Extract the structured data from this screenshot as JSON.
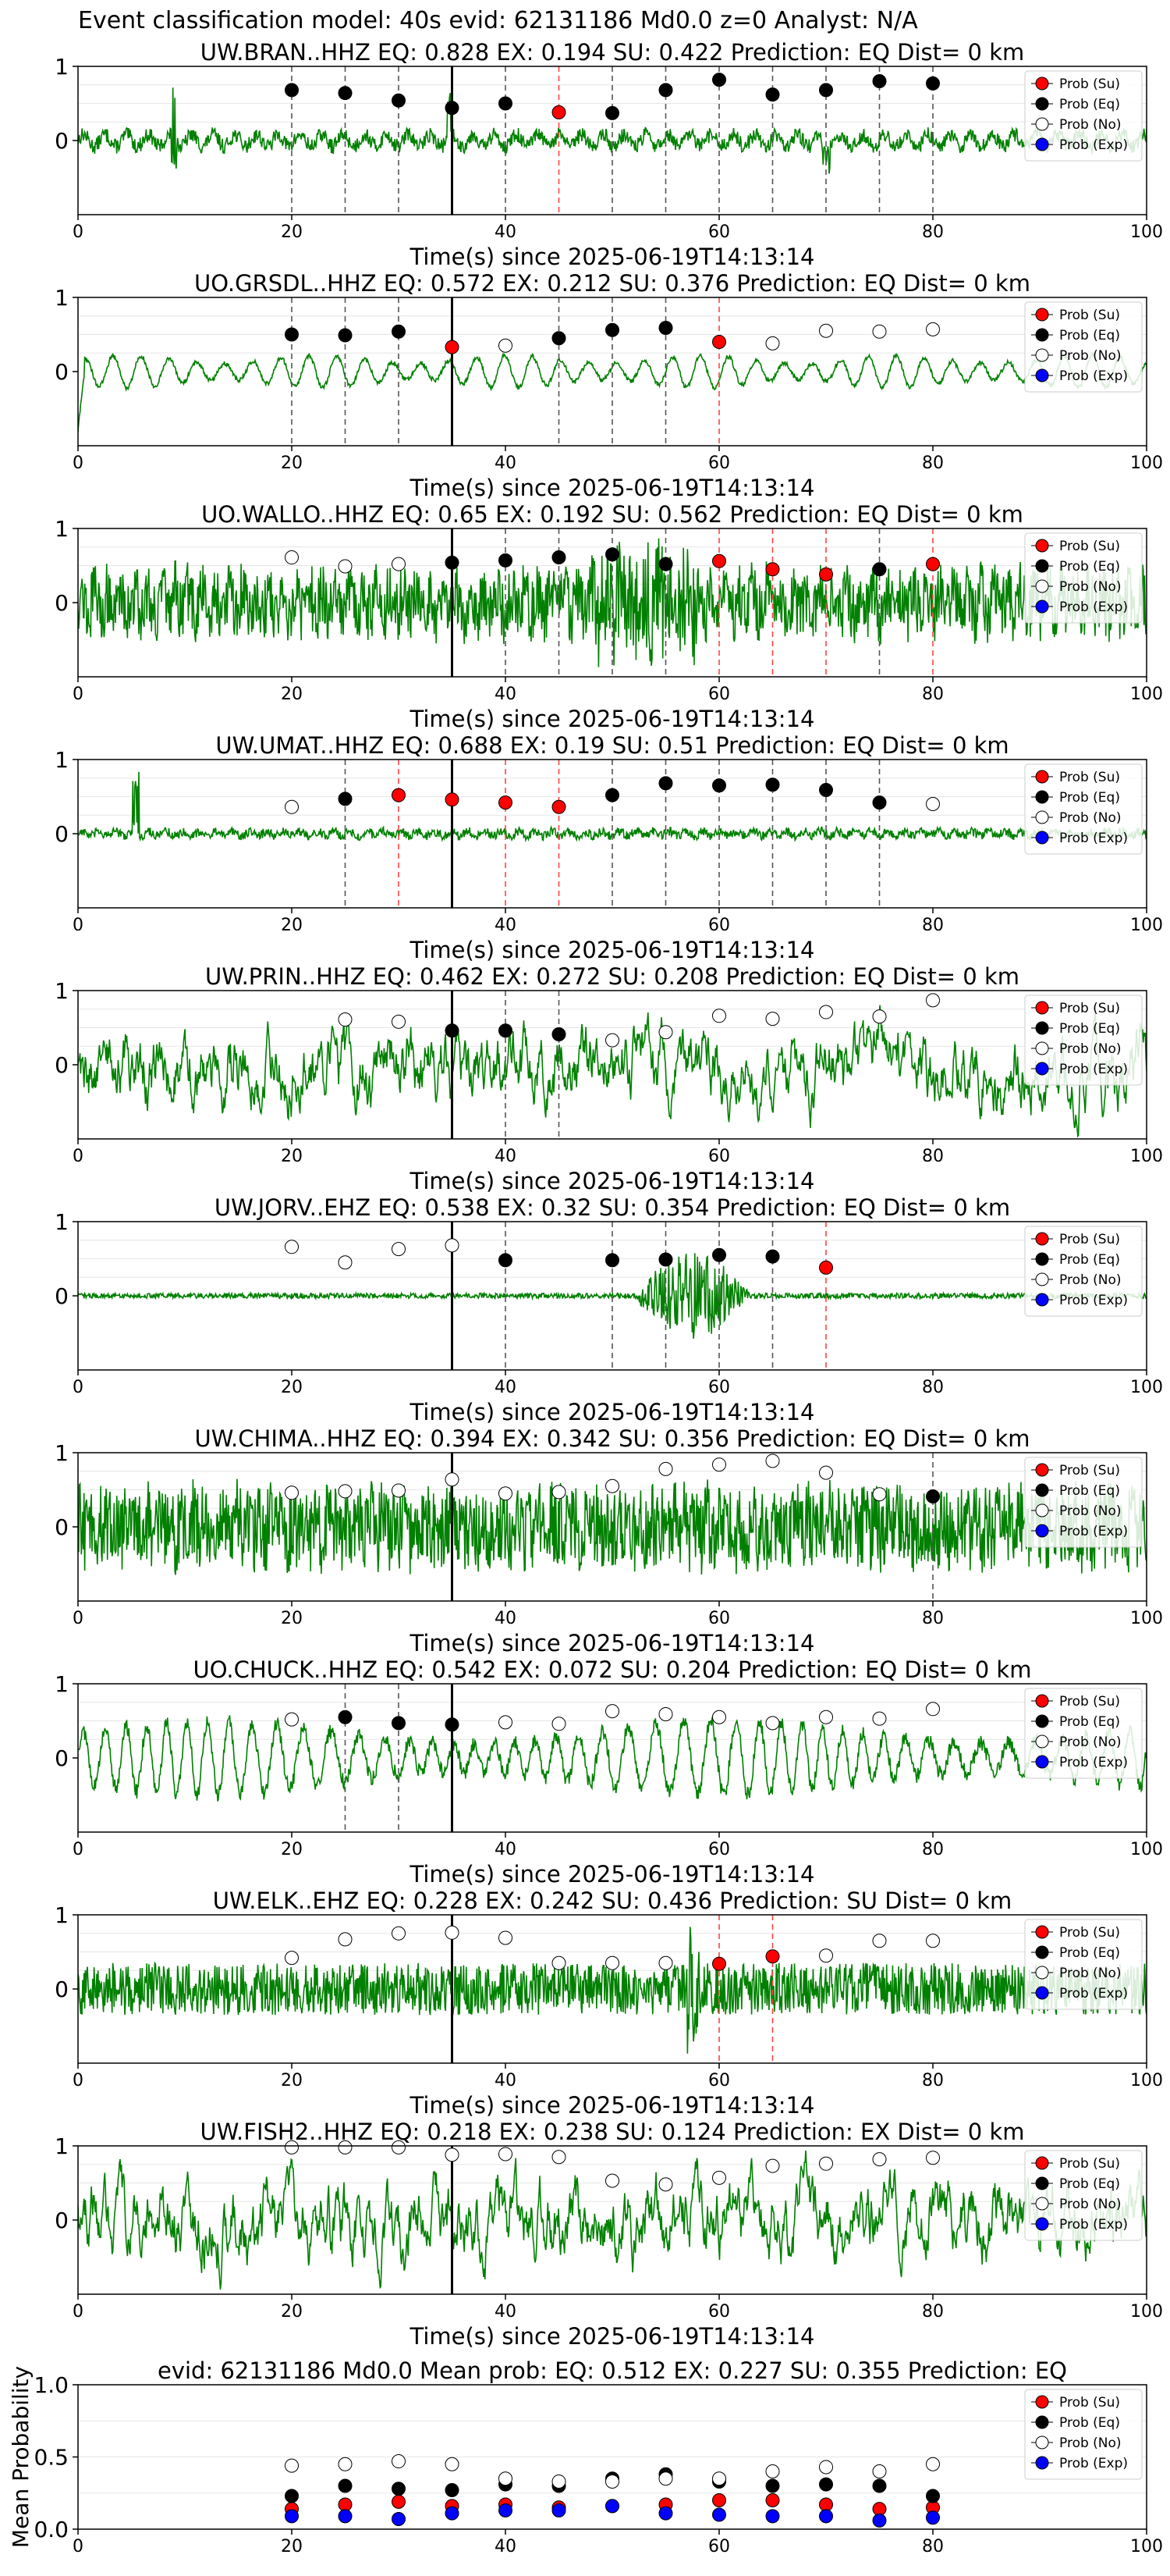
{
  "figure_title": "Event classification model: 40s evid: 62131186 Md0.0 z=0 Analyst: N/A",
  "legend_labels": [
    "Prob (Su)",
    "Prob (Eq)",
    "Prob (No)",
    "Prob (Exp)"
  ],
  "colors": {
    "su": "#ff0000",
    "eq": "#000000",
    "no": "#ffffff",
    "exp": "#0000ff",
    "trace": "#008000"
  },
  "chart_data": [
    {
      "type": "line",
      "title": "UW.BRAN..HHZ   EQ: 0.828  EX: 0.194  SU: 0.422   Prediction: EQ    Dist= 0 km",
      "xlabel": "Time(s) since 2025-06-19T14:13:14",
      "ylabel": "",
      "xlim": [
        0,
        100
      ],
      "ylim": [
        -1,
        1
      ],
      "yticks": [
        0,
        1
      ],
      "xticks": [
        0,
        20,
        40,
        60,
        80,
        100
      ],
      "trace_style": "low-amplitude noise with small spikes near 9s and 70s",
      "arrival_time": 35,
      "probability_points": [
        {
          "x": 20,
          "y": 0.68,
          "class": "Eq"
        },
        {
          "x": 25,
          "y": 0.64,
          "class": "Eq"
        },
        {
          "x": 30,
          "y": 0.54,
          "class": "Eq"
        },
        {
          "x": 35,
          "y": 0.44,
          "class": "Eq"
        },
        {
          "x": 40,
          "y": 0.5,
          "class": "Eq"
        },
        {
          "x": 45,
          "y": 0.38,
          "class": "Su"
        },
        {
          "x": 50,
          "y": 0.37,
          "class": "Eq"
        },
        {
          "x": 55,
          "y": 0.68,
          "class": "Eq"
        },
        {
          "x": 60,
          "y": 0.82,
          "class": "Eq"
        },
        {
          "x": 65,
          "y": 0.62,
          "class": "Eq"
        },
        {
          "x": 70,
          "y": 0.68,
          "class": "Eq"
        },
        {
          "x": 75,
          "y": 0.8,
          "class": "Eq"
        },
        {
          "x": 80,
          "y": 0.77,
          "class": "Eq"
        }
      ]
    },
    {
      "type": "line",
      "title": "UO.GRSDL..HHZ   EQ: 0.572  EX: 0.212  SU: 0.376   Prediction: EQ    Dist= 0 km",
      "xlabel": "Time(s) since 2025-06-19T14:13:14",
      "ylabel": "",
      "xlim": [
        0,
        100
      ],
      "ylim": [
        -1,
        1
      ],
      "yticks": [
        0,
        1
      ],
      "xticks": [
        0,
        20,
        40,
        60,
        80,
        100
      ],
      "trace_style": "smooth oscillation, decaying after initial drop",
      "arrival_time": 35,
      "probability_points": [
        {
          "x": 20,
          "y": 0.5,
          "class": "Eq"
        },
        {
          "x": 25,
          "y": 0.49,
          "class": "Eq"
        },
        {
          "x": 30,
          "y": 0.54,
          "class": "Eq"
        },
        {
          "x": 35,
          "y": 0.33,
          "class": "Su"
        },
        {
          "x": 40,
          "y": 0.35,
          "class": "No"
        },
        {
          "x": 45,
          "y": 0.45,
          "class": "Eq"
        },
        {
          "x": 50,
          "y": 0.56,
          "class": "Eq"
        },
        {
          "x": 55,
          "y": 0.59,
          "class": "Eq"
        },
        {
          "x": 60,
          "y": 0.4,
          "class": "Su"
        },
        {
          "x": 65,
          "y": 0.38,
          "class": "No"
        },
        {
          "x": 70,
          "y": 0.55,
          "class": "No"
        },
        {
          "x": 75,
          "y": 0.54,
          "class": "No"
        },
        {
          "x": 80,
          "y": 0.57,
          "class": "No"
        }
      ]
    },
    {
      "type": "line",
      "title": "UO.WALLO..HHZ   EQ: 0.65  EX: 0.192  SU: 0.562   Prediction: EQ    Dist= 0 km",
      "xlabel": "Time(s) since 2025-06-19T14:13:14",
      "ylabel": "",
      "xlim": [
        0,
        100
      ],
      "ylim": [
        -1,
        1
      ],
      "yticks": [
        0,
        1
      ],
      "xticks": [
        0,
        20,
        40,
        60,
        80,
        100
      ],
      "trace_style": "high-amplitude noise, burst around 50-55s",
      "arrival_time": 35,
      "probability_points": [
        {
          "x": 20,
          "y": 0.61,
          "class": "No"
        },
        {
          "x": 25,
          "y": 0.49,
          "class": "No"
        },
        {
          "x": 30,
          "y": 0.52,
          "class": "No"
        },
        {
          "x": 35,
          "y": 0.54,
          "class": "Eq"
        },
        {
          "x": 40,
          "y": 0.57,
          "class": "Eq"
        },
        {
          "x": 45,
          "y": 0.61,
          "class": "Eq"
        },
        {
          "x": 50,
          "y": 0.65,
          "class": "Eq"
        },
        {
          "x": 55,
          "y": 0.52,
          "class": "Eq"
        },
        {
          "x": 60,
          "y": 0.56,
          "class": "Su"
        },
        {
          "x": 65,
          "y": 0.45,
          "class": "Su"
        },
        {
          "x": 70,
          "y": 0.38,
          "class": "Su"
        },
        {
          "x": 75,
          "y": 0.45,
          "class": "Eq"
        },
        {
          "x": 80,
          "y": 0.52,
          "class": "Su"
        }
      ]
    },
    {
      "type": "line",
      "title": "UW.UMAT..HHZ   EQ: 0.688  EX: 0.19  SU: 0.51   Prediction: EQ    Dist= 0 km",
      "xlabel": "Time(s) since 2025-06-19T14:13:14",
      "ylabel": "",
      "xlim": [
        0,
        100
      ],
      "ylim": [
        -1,
        1
      ],
      "yticks": [
        0,
        1
      ],
      "xticks": [
        0,
        20,
        40,
        60,
        80,
        100
      ],
      "trace_style": "low-amplitude noise with large spike near 5s",
      "arrival_time": 35,
      "probability_points": [
        {
          "x": 20,
          "y": 0.36,
          "class": "No"
        },
        {
          "x": 25,
          "y": 0.47,
          "class": "Eq"
        },
        {
          "x": 30,
          "y": 0.52,
          "class": "Su"
        },
        {
          "x": 35,
          "y": 0.46,
          "class": "Su"
        },
        {
          "x": 40,
          "y": 0.42,
          "class": "Su"
        },
        {
          "x": 45,
          "y": 0.36,
          "class": "Su"
        },
        {
          "x": 50,
          "y": 0.52,
          "class": "Eq"
        },
        {
          "x": 55,
          "y": 0.68,
          "class": "Eq"
        },
        {
          "x": 60,
          "y": 0.65,
          "class": "Eq"
        },
        {
          "x": 65,
          "y": 0.66,
          "class": "Eq"
        },
        {
          "x": 70,
          "y": 0.59,
          "class": "Eq"
        },
        {
          "x": 75,
          "y": 0.42,
          "class": "Eq"
        },
        {
          "x": 80,
          "y": 0.4,
          "class": "No"
        }
      ]
    },
    {
      "type": "line",
      "title": "UW.PRIN..HHZ   EQ: 0.462  EX: 0.272  SU: 0.208   Prediction: EQ    Dist= 0 km",
      "xlabel": "Time(s) since 2025-06-19T14:13:14",
      "ylabel": "",
      "xlim": [
        0,
        100
      ],
      "ylim": [
        -1,
        1
      ],
      "yticks": [
        0,
        1
      ],
      "xticks": [
        0,
        20,
        40,
        60,
        80,
        100
      ],
      "trace_style": "large irregular oscillation throughout",
      "arrival_time": 35,
      "probability_points": [
        {
          "x": 25,
          "y": 0.61,
          "class": "No"
        },
        {
          "x": 30,
          "y": 0.58,
          "class": "No"
        },
        {
          "x": 35,
          "y": 0.46,
          "class": "Eq"
        },
        {
          "x": 40,
          "y": 0.46,
          "class": "Eq"
        },
        {
          "x": 45,
          "y": 0.41,
          "class": "Eq"
        },
        {
          "x": 50,
          "y": 0.33,
          "class": "No"
        },
        {
          "x": 55,
          "y": 0.44,
          "class": "No"
        },
        {
          "x": 60,
          "y": 0.66,
          "class": "No"
        },
        {
          "x": 65,
          "y": 0.62,
          "class": "No"
        },
        {
          "x": 70,
          "y": 0.71,
          "class": "No"
        },
        {
          "x": 75,
          "y": 0.65,
          "class": "No"
        },
        {
          "x": 80,
          "y": 0.87,
          "class": "No"
        }
      ]
    },
    {
      "type": "line",
      "title": "UW.JORV..EHZ   EQ: 0.538  EX: 0.32  SU: 0.354   Prediction: EQ    Dist= 0 km",
      "xlabel": "Time(s) since 2025-06-19T14:13:14",
      "ylabel": "",
      "xlim": [
        0,
        100
      ],
      "ylim": [
        -1,
        1
      ],
      "yticks": [
        0,
        1
      ],
      "xticks": [
        0,
        20,
        40,
        60,
        80,
        100
      ],
      "trace_style": "quiet trace with large burst between 53s and 62s",
      "arrival_time": 35,
      "probability_points": [
        {
          "x": 20,
          "y": 0.66,
          "class": "No"
        },
        {
          "x": 25,
          "y": 0.45,
          "class": "No"
        },
        {
          "x": 30,
          "y": 0.63,
          "class": "No"
        },
        {
          "x": 35,
          "y": 0.68,
          "class": "No"
        },
        {
          "x": 40,
          "y": 0.48,
          "class": "Eq"
        },
        {
          "x": 50,
          "y": 0.48,
          "class": "Eq"
        },
        {
          "x": 55,
          "y": 0.49,
          "class": "Eq"
        },
        {
          "x": 60,
          "y": 0.55,
          "class": "Eq"
        },
        {
          "x": 65,
          "y": 0.53,
          "class": "Eq"
        },
        {
          "x": 70,
          "y": 0.38,
          "class": "Su"
        }
      ]
    },
    {
      "type": "line",
      "title": "UW.CHIMA..HHZ   EQ: 0.394  EX: 0.342  SU: 0.356   Prediction: EQ    Dist= 0 km",
      "xlabel": "Time(s) since 2025-06-19T14:13:14",
      "ylabel": "",
      "xlim": [
        0,
        100
      ],
      "ylim": [
        -1,
        1
      ],
      "yticks": [
        0,
        1
      ],
      "xticks": [
        0,
        20,
        40,
        60,
        80,
        100
      ],
      "trace_style": "dense high-amplitude noise throughout",
      "arrival_time": 35,
      "probability_points": [
        {
          "x": 20,
          "y": 0.46,
          "class": "No"
        },
        {
          "x": 25,
          "y": 0.48,
          "class": "No"
        },
        {
          "x": 30,
          "y": 0.49,
          "class": "No"
        },
        {
          "x": 35,
          "y": 0.64,
          "class": "No"
        },
        {
          "x": 40,
          "y": 0.45,
          "class": "No"
        },
        {
          "x": 45,
          "y": 0.47,
          "class": "No"
        },
        {
          "x": 50,
          "y": 0.55,
          "class": "No"
        },
        {
          "x": 55,
          "y": 0.78,
          "class": "No"
        },
        {
          "x": 60,
          "y": 0.84,
          "class": "No"
        },
        {
          "x": 65,
          "y": 0.89,
          "class": "No"
        },
        {
          "x": 70,
          "y": 0.73,
          "class": "No"
        },
        {
          "x": 75,
          "y": 0.44,
          "class": "No"
        },
        {
          "x": 80,
          "y": 0.41,
          "class": "Eq"
        }
      ]
    },
    {
      "type": "line",
      "title": "UO.CHUCK..HHZ   EQ: 0.542  EX: 0.072  SU: 0.204   Prediction: EQ    Dist= 0 km",
      "xlabel": "Time(s) since 2025-06-19T14:13:14",
      "ylabel": "",
      "xlim": [
        0,
        100
      ],
      "ylim": [
        -1,
        1
      ],
      "yticks": [
        0,
        1
      ],
      "xticks": [
        0,
        20,
        40,
        60,
        80,
        100
      ],
      "trace_style": "smooth large oscillation",
      "arrival_time": 35,
      "probability_points": [
        {
          "x": 20,
          "y": 0.52,
          "class": "No"
        },
        {
          "x": 25,
          "y": 0.55,
          "class": "Eq"
        },
        {
          "x": 30,
          "y": 0.47,
          "class": "Eq"
        },
        {
          "x": 35,
          "y": 0.45,
          "class": "Eq"
        },
        {
          "x": 40,
          "y": 0.48,
          "class": "No"
        },
        {
          "x": 45,
          "y": 0.46,
          "class": "No"
        },
        {
          "x": 50,
          "y": 0.63,
          "class": "No"
        },
        {
          "x": 55,
          "y": 0.59,
          "class": "No"
        },
        {
          "x": 60,
          "y": 0.55,
          "class": "No"
        },
        {
          "x": 65,
          "y": 0.47,
          "class": "No"
        },
        {
          "x": 70,
          "y": 0.55,
          "class": "No"
        },
        {
          "x": 75,
          "y": 0.53,
          "class": "No"
        },
        {
          "x": 80,
          "y": 0.66,
          "class": "No"
        }
      ]
    },
    {
      "type": "line",
      "title": "UW.ELK..EHZ   EQ: 0.228  EX: 0.242  SU: 0.436   Prediction: SU    Dist= 0 km",
      "xlabel": "Time(s) since 2025-06-19T14:13:14",
      "ylabel": "",
      "xlim": [
        0,
        100
      ],
      "ylim": [
        -1,
        1
      ],
      "yticks": [
        0,
        1
      ],
      "xticks": [
        0,
        20,
        40,
        60,
        80,
        100
      ],
      "trace_style": "moderate noise with spike near 58s",
      "arrival_time": 35,
      "probability_points": [
        {
          "x": 20,
          "y": 0.42,
          "class": "No"
        },
        {
          "x": 25,
          "y": 0.67,
          "class": "No"
        },
        {
          "x": 30,
          "y": 0.75,
          "class": "No"
        },
        {
          "x": 35,
          "y": 0.76,
          "class": "No"
        },
        {
          "x": 40,
          "y": 0.69,
          "class": "No"
        },
        {
          "x": 45,
          "y": 0.35,
          "class": "No"
        },
        {
          "x": 50,
          "y": 0.35,
          "class": "No"
        },
        {
          "x": 55,
          "y": 0.35,
          "class": "No"
        },
        {
          "x": 60,
          "y": 0.34,
          "class": "Su"
        },
        {
          "x": 65,
          "y": 0.44,
          "class": "Su"
        },
        {
          "x": 70,
          "y": 0.45,
          "class": "No"
        },
        {
          "x": 75,
          "y": 0.65,
          "class": "No"
        },
        {
          "x": 80,
          "y": 0.65,
          "class": "No"
        }
      ]
    },
    {
      "type": "line",
      "title": "UW.FISH2..HHZ   EQ: 0.218  EX: 0.238  SU: 0.124   Prediction: EX    Dist= 0 km",
      "xlabel": "Time(s) since 2025-06-19T14:13:14",
      "ylabel": "",
      "xlim": [
        0,
        100
      ],
      "ylim": [
        -1,
        1
      ],
      "yticks": [
        0,
        1
      ],
      "xticks": [
        0,
        20,
        40,
        60,
        80,
        100
      ],
      "trace_style": "large irregular oscillation throughout",
      "arrival_time": 35,
      "probability_points": [
        {
          "x": 20,
          "y": 0.98,
          "class": "No"
        },
        {
          "x": 25,
          "y": 0.98,
          "class": "No"
        },
        {
          "x": 30,
          "y": 0.98,
          "class": "No"
        },
        {
          "x": 35,
          "y": 0.88,
          "class": "No"
        },
        {
          "x": 40,
          "y": 0.89,
          "class": "No"
        },
        {
          "x": 45,
          "y": 0.85,
          "class": "No"
        },
        {
          "x": 50,
          "y": 0.53,
          "class": "No"
        },
        {
          "x": 55,
          "y": 0.48,
          "class": "No"
        },
        {
          "x": 60,
          "y": 0.57,
          "class": "No"
        },
        {
          "x": 65,
          "y": 0.73,
          "class": "No"
        },
        {
          "x": 70,
          "y": 0.76,
          "class": "No"
        },
        {
          "x": 75,
          "y": 0.82,
          "class": "No"
        },
        {
          "x": 80,
          "y": 0.84,
          "class": "No"
        }
      ]
    },
    {
      "type": "scatter",
      "title": "evid: 62131186  Md0.0   Mean prob:   EQ: 0.512  EX: 0.227  SU: 0.355   Prediction: EQ",
      "xlabel": "",
      "ylabel": "Mean Probability",
      "xlim": [
        0,
        100
      ],
      "ylim": [
        0,
        1
      ],
      "yticks": [
        0.0,
        0.5,
        1.0
      ],
      "xticks": [
        0,
        20,
        40,
        60,
        80,
        100
      ],
      "x": [
        20,
        25,
        30,
        35,
        40,
        45,
        50,
        55,
        60,
        65,
        70,
        75,
        80
      ],
      "series": [
        {
          "name": "Prob (Su)",
          "values": [
            0.14,
            0.17,
            0.19,
            0.16,
            0.17,
            0.15,
            0.16,
            0.17,
            0.2,
            0.2,
            0.17,
            0.14,
            0.15
          ]
        },
        {
          "name": "Prob (Eq)",
          "values": [
            0.23,
            0.3,
            0.28,
            0.27,
            0.31,
            0.3,
            0.35,
            0.38,
            0.33,
            0.3,
            0.31,
            0.3,
            0.23
          ]
        },
        {
          "name": "Prob (No)",
          "values": [
            0.44,
            0.45,
            0.47,
            0.45,
            0.35,
            0.33,
            0.33,
            0.35,
            0.35,
            0.4,
            0.43,
            0.4,
            0.45
          ]
        },
        {
          "name": "Prob (Exp)",
          "values": [
            0.09,
            0.09,
            0.07,
            0.11,
            0.13,
            0.13,
            0.16,
            0.11,
            0.1,
            0.09,
            0.09,
            0.06,
            0.08
          ]
        }
      ]
    }
  ]
}
